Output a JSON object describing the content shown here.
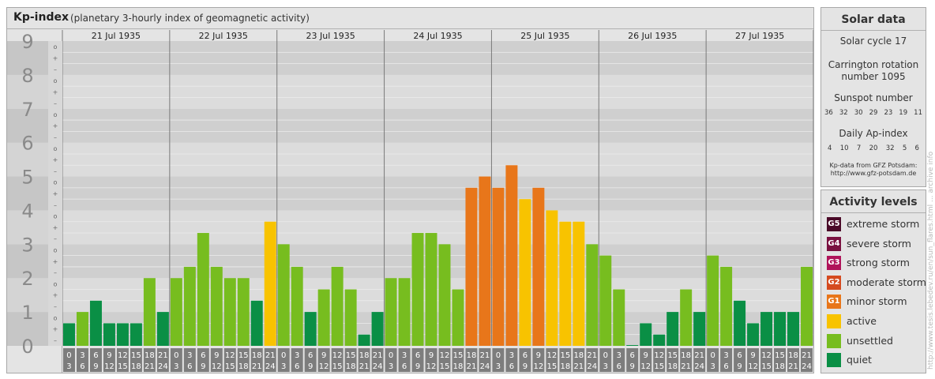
{
  "header": {
    "title": "Kp-index",
    "subtitle": "(planetary 3-hourly index of geomagnetic activity)"
  },
  "chart_data": {
    "type": "bar",
    "title": "Kp-index",
    "subtitle": "(planetary 3-hourly index of geomagnetic activity)",
    "ylim": [
      0,
      9
    ],
    "yticks": [
      "0",
      "1",
      "2",
      "3",
      "4",
      "5",
      "6",
      "7",
      "8",
      "9"
    ],
    "minor_tick_labels": [
      "–",
      "+",
      "o"
    ],
    "days": [
      "21 Jul 1935",
      "22 Jul 1935",
      "23 Jul 1935",
      "24 Jul 1935",
      "25 Jul 1935",
      "26 Jul 1935",
      "27 Jul 1935"
    ],
    "interval_top_labels": [
      "0",
      "3",
      "6",
      "9",
      "12",
      "15",
      "18",
      "21"
    ],
    "interval_bottom_labels": [
      "3",
      "6",
      "9",
      "12",
      "15",
      "18",
      "21",
      "24"
    ],
    "values": [
      0.667,
      1.0,
      1.333,
      0.667,
      0.667,
      0.667,
      2.0,
      1.0,
      2.0,
      2.333,
      3.333,
      2.333,
      2.0,
      2.0,
      1.333,
      3.667,
      3.0,
      2.333,
      1.0,
      1.667,
      2.333,
      1.667,
      0.333,
      1.0,
      2.0,
      2.0,
      3.333,
      3.333,
      3.0,
      1.667,
      4.667,
      5.0,
      4.667,
      5.333,
      4.333,
      4.667,
      4.0,
      3.667,
      3.667,
      3.0,
      2.667,
      1.667,
      0.0,
      0.667,
      0.333,
      1.0,
      1.667,
      1.0,
      2.667,
      2.333,
      1.333,
      0.667,
      1.0,
      1.0,
      1.0,
      2.333
    ],
    "levels": [
      "quiet",
      "unsettled",
      "quiet",
      "quiet",
      "quiet",
      "quiet",
      "unsettled",
      "quiet",
      "unsettled",
      "unsettled",
      "unsettled",
      "unsettled",
      "unsettled",
      "unsettled",
      "quiet",
      "active",
      "unsettled",
      "unsettled",
      "quiet",
      "unsettled",
      "unsettled",
      "unsettled",
      "quiet",
      "quiet",
      "unsettled",
      "unsettled",
      "unsettled",
      "unsettled",
      "unsettled",
      "unsettled",
      "minor",
      "minor",
      "minor",
      "minor",
      "active",
      "minor",
      "active",
      "active",
      "active",
      "unsettled",
      "unsettled",
      "unsettled",
      "quiet",
      "quiet",
      "quiet",
      "quiet",
      "unsettled",
      "quiet",
      "unsettled",
      "unsettled",
      "quiet",
      "quiet",
      "quiet",
      "quiet",
      "quiet",
      "unsettled"
    ]
  },
  "colors": {
    "quiet": "#0a8f45",
    "unsettled": "#77bd1f",
    "active": "#f8c300",
    "minor": "#e8761a",
    "moderate": "#d54a1f",
    "strong": "#b0145a",
    "severe": "#7a1140",
    "extreme": "#4a0a28"
  },
  "solar_data": {
    "title": "Solar data",
    "cycle": "Solar cycle 17",
    "carrington_line1": "Carrington rotation",
    "carrington_line2": "number 1095",
    "sunspot_label": "Sunspot number",
    "sunspot_values": [
      "36",
      "32",
      "30",
      "29",
      "23",
      "19",
      "11"
    ],
    "ap_label": "Daily Ap-index",
    "ap_values": [
      "4",
      "10",
      "7",
      "20",
      "32",
      "5",
      "6"
    ],
    "source_line1": "Kp-data from GFZ Potsdam:",
    "source_line2": "http://www.gfz-potsdam.de"
  },
  "activity_levels": {
    "title": "Activity levels",
    "items": [
      {
        "code": "G5",
        "label": "extreme storm",
        "color": "#4a0a28"
      },
      {
        "code": "G4",
        "label": "severe storm",
        "color": "#7a1140"
      },
      {
        "code": "G3",
        "label": "strong storm",
        "color": "#b0145a"
      },
      {
        "code": "G2",
        "label": "moderate storm",
        "color": "#d54a1f"
      },
      {
        "code": "G1",
        "label": "minor storm",
        "color": "#e8761a"
      },
      {
        "code": "",
        "label": "active",
        "color": "#f8c300"
      },
      {
        "code": "",
        "label": "unsettled",
        "color": "#77bd1f"
      },
      {
        "code": "",
        "label": "quiet",
        "color": "#0a8f45"
      }
    ]
  },
  "credit": "http://www.tesis.lebedev.ru/en/sun_flares.html ... archive info"
}
